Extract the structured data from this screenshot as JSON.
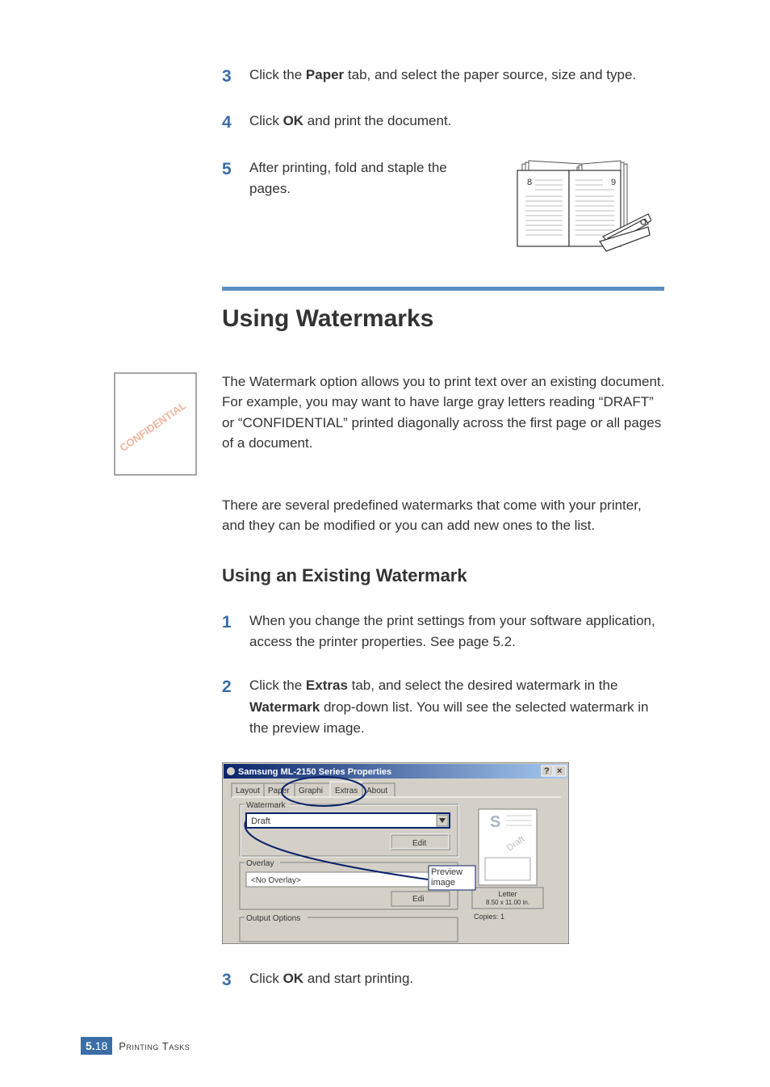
{
  "colors": {
    "accent": "#3a6ea5",
    "divider": "#5b8fbf",
    "text": "#333333",
    "watermark_text": "#f2b5a0",
    "screenshot_bg": "#d4d0c8",
    "screenshot_titlebar_start": "#0a246a",
    "screenshot_titlebar_end": "#a6caf0",
    "screenshot_field_bg": "#ffffff",
    "screenshot_border": "#808080",
    "preview_s_color": "#a8b8c8",
    "callout_line": "#0a246a"
  },
  "steps_top": [
    {
      "n": "3",
      "html": "Click the <b>Paper</b> tab, and select the paper source, size and type."
    },
    {
      "n": "4",
      "html": "Click <b>OK</b> and print the document."
    }
  ],
  "step5": {
    "n": "5",
    "text": "After printing, fold and staple the pages."
  },
  "booklet": {
    "left_page_num": "8",
    "right_page_num": "9"
  },
  "h1": "Using Watermarks",
  "thumb": {
    "confidential_text": "CONFIDENTIAL"
  },
  "para1": "The Watermark option allows you to print text over an existing document. For example, you may want to have large gray letters reading “DRAFT” or “CONFIDENTIAL” printed diagonally across the first page or all pages of a document.",
  "para2": "There are several predefined watermarks that come with your printer, and they can be modified or you can add new ones to the list.",
  "h2": "Using an Existing Watermark",
  "steps_bottom": [
    {
      "n": "1",
      "html": "When you change the print settings from your software application, access the printer properties. See page 5.2."
    },
    {
      "n": "2",
      "html": "Click the <b>Extras</b> tab, and select the desired watermark in the <b>Watermark</b> drop-down list. You will see the selected watermark in the preview image."
    },
    {
      "n": "3",
      "html": "Click <b>OK</b> and start printing."
    }
  ],
  "screenshot": {
    "title": "Samsung ML-2150 Series Properties",
    "tabs": [
      "Layout",
      "Paper",
      "Graphi",
      "Extras",
      "About"
    ],
    "active_tab_index": 3,
    "groups": {
      "watermark_label": "Watermark",
      "watermark_value": "Draft",
      "watermark_edit": "Edit",
      "overlay_label": "Overlay",
      "overlay_value": "<No Overlay>",
      "overlay_edit": "Edi",
      "output_label": "Output Options"
    },
    "preview": {
      "caption": "Letter",
      "size": "8.50 x 11.00 in.",
      "copies": "Copies: 1",
      "wm_text": "Draft",
      "s_text": "S"
    },
    "callout": "Preview image"
  },
  "footer": {
    "chapter_num": "5.",
    "page_num": "18",
    "chapter_title": "Printing Tasks"
  }
}
